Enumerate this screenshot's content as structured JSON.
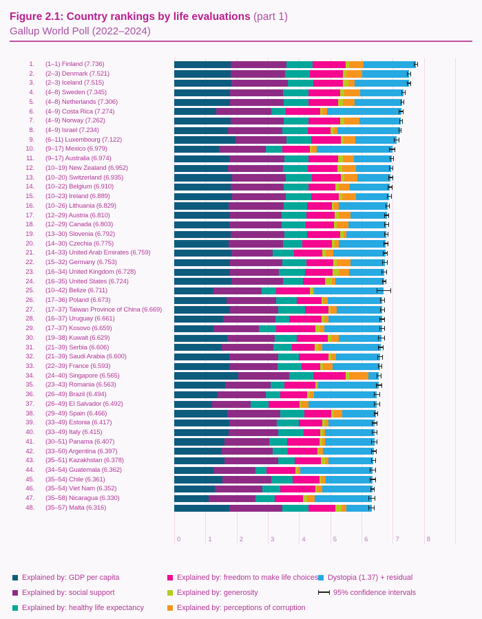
{
  "title": {
    "main": "Figure 2.1: Country rankings by life evaluations",
    "part": "(part 1)",
    "subtitle": "Gallup World Poll (2022–2024)"
  },
  "legend": {
    "items": [
      {
        "label": "Explained by: GDP per capita",
        "color": "#0d5c7e",
        "col": 1,
        "row": 1
      },
      {
        "label": "Explained by: social support",
        "color": "#8e2c85",
        "col": 1,
        "row": 2
      },
      {
        "label": "Explained by: healthy life expectancy",
        "color": "#02a79a",
        "col": 1,
        "row": 3
      },
      {
        "label": "Explained by: freedom to make life choices",
        "color": "#f50790",
        "col": 2,
        "row": 1
      },
      {
        "label": "Explained by: generosity",
        "color": "#b5cc1e",
        "col": 2,
        "row": 2
      },
      {
        "label": "Explained by: perceptions of corruption",
        "color": "#f7941e",
        "col": 2,
        "row": 3
      },
      {
        "label": "Dystopia (1.37) + residual",
        "color": "#27a9e1",
        "col": 3,
        "row": 1
      },
      {
        "label": "95% confidence intervals",
        "glyph": "errorbar",
        "col": 3,
        "row": 2
      }
    ]
  },
  "chart_data": {
    "type": "bar",
    "orientation": "horizontal-stacked",
    "xlim": [
      0,
      8
    ],
    "x_ticks": [
      0,
      1,
      2,
      3,
      4,
      5,
      6,
      7,
      8
    ],
    "grid": true,
    "legend_position": "bottom",
    "stack_order": [
      "gdp_per_capita",
      "social_support",
      "healthy_life_expectancy",
      "freedom",
      "generosity",
      "corruption",
      "dystopia_residual"
    ],
    "colors": {
      "gdp_per_capita": "#0d5c7e",
      "social_support": "#8e2c85",
      "healthy_life_expectancy": "#02a79a",
      "freedom": "#f50790",
      "generosity": "#b5cc1e",
      "corruption": "#f7941e",
      "dystopia_residual": "#27a9e1",
      "confidence_interval": "#1f1f1f"
    },
    "rows": [
      {
        "rank": 1,
        "range": "(1–1)",
        "country": "Finland",
        "score": 7.736,
        "ci": 0.06,
        "segments": [
          1.8,
          1.8,
          0.83,
          1.06,
          0.11,
          0.47,
          1.67
        ]
      },
      {
        "rank": 2,
        "range": "(2–3)",
        "country": "Denmark",
        "score": 7.521,
        "ci": 0.07,
        "segments": [
          1.8,
          1.75,
          0.8,
          1.05,
          0.12,
          0.5,
          1.5
        ]
      },
      {
        "rank": 3,
        "range": "(2–3)",
        "country": "Iceland",
        "score": 7.515,
        "ci": 0.06,
        "segments": [
          1.82,
          1.82,
          0.81,
          0.95,
          0.17,
          0.2,
          1.75
        ]
      },
      {
        "rank": 4,
        "range": "(4–8)",
        "country": "Sweden",
        "score": 7.345,
        "ci": 0.06,
        "segments": [
          1.78,
          1.7,
          0.81,
          1.02,
          0.14,
          0.51,
          1.38
        ]
      },
      {
        "rank": 5,
        "range": "(4–8)",
        "country": "Netherlands",
        "score": 7.306,
        "ci": 0.05,
        "segments": [
          1.79,
          1.71,
          0.8,
          0.95,
          0.15,
          0.38,
          1.53
        ]
      },
      {
        "rank": 6,
        "range": "(4–9)",
        "country": "Costa Rica",
        "score": 7.274,
        "ci": 0.08,
        "segments": [
          1.35,
          1.75,
          0.48,
          1.09,
          0.07,
          0.15,
          2.38
        ]
      },
      {
        "rank": 7,
        "range": "(4–9)",
        "country": "Norway",
        "score": 7.262,
        "ci": 0.06,
        "segments": [
          1.8,
          1.7,
          0.8,
          1.02,
          0.12,
          0.49,
          1.33
        ]
      },
      {
        "rank": 8,
        "range": "(4–9)",
        "country": "Israel",
        "score": 7.234,
        "ci": 0.05,
        "segments": [
          1.71,
          1.75,
          0.82,
          0.73,
          0.1,
          0.12,
          2.0
        ]
      },
      {
        "rank": 9,
        "range": "(6–11)",
        "country": "Luxembourg",
        "score": 7.122,
        "ci": 0.08,
        "segments": [
          1.97,
          1.62,
          0.79,
          0.96,
          0.09,
          0.37,
          1.32
        ]
      },
      {
        "rank": 10,
        "range": "(9–17)",
        "country": "Mexico",
        "score": 6.979,
        "ci": 0.09,
        "segments": [
          1.43,
          1.51,
          0.53,
          0.87,
          0.07,
          0.15,
          2.42
        ]
      },
      {
        "rank": 11,
        "range": "(9–17)",
        "country": "Australia",
        "score": 6.974,
        "ci": 0.07,
        "segments": [
          1.76,
          1.76,
          0.79,
          0.93,
          0.17,
          0.34,
          1.22
        ]
      },
      {
        "rank": 12,
        "range": "(10–19)",
        "country": "New Zealand",
        "score": 6.952,
        "ci": 0.07,
        "segments": [
          1.72,
          1.77,
          0.79,
          0.94,
          0.17,
          0.43,
          1.13
        ]
      },
      {
        "rank": 13,
        "range": "(10–20)",
        "country": "Switzerland",
        "score": 6.935,
        "ci": 0.07,
        "segments": [
          1.86,
          1.71,
          0.83,
          0.93,
          0.11,
          0.43,
          1.06
        ]
      },
      {
        "rank": 14,
        "range": "(10–22)",
        "country": "Belgium",
        "score": 6.91,
        "ci": 0.07,
        "segments": [
          1.81,
          1.7,
          0.8,
          0.86,
          0.09,
          0.36,
          1.29
        ]
      },
      {
        "rank": 15,
        "range": "(10–23)",
        "country": "Ireland",
        "score": 6.889,
        "ci": 0.07,
        "segments": [
          1.86,
          1.72,
          0.81,
          0.88,
          0.12,
          0.43,
          1.07
        ]
      },
      {
        "rank": 16,
        "range": "(10–26)",
        "country": "Lithuania",
        "score": 6.829,
        "ci": 0.07,
        "segments": [
          1.75,
          1.76,
          0.74,
          0.8,
          0.06,
          0.16,
          1.56
        ]
      },
      {
        "rank": 17,
        "range": "(12–29)",
        "country": "Austria",
        "score": 6.81,
        "ci": 0.08,
        "segments": [
          1.79,
          1.65,
          0.8,
          0.89,
          0.13,
          0.39,
          1.16
        ]
      },
      {
        "rank": 18,
        "range": "(12–29)",
        "country": "Canada",
        "score": 6.803,
        "ci": 0.08,
        "segments": [
          1.77,
          1.67,
          0.78,
          0.9,
          0.09,
          0.37,
          1.22
        ]
      },
      {
        "rank": 19,
        "range": "(13–30)",
        "country": "Slovenia",
        "score": 6.792,
        "ci": 0.07,
        "segments": [
          1.8,
          1.73,
          0.72,
          1.06,
          0.12,
          0.09,
          1.27
        ]
      },
      {
        "rank": 20,
        "range": "(14–30)",
        "country": "Czechia",
        "score": 6.775,
        "ci": 0.08,
        "segments": [
          1.74,
          1.74,
          0.63,
          0.94,
          0.08,
          0.14,
          1.5
        ]
      },
      {
        "rank": 21,
        "range": "(14–33)",
        "country": "United Arab Emirates",
        "score": 6.759,
        "ci": 0.08,
        "segments": [
          1.82,
          1.34,
          0.67,
          0.91,
          0.11,
          0.25,
          1.66
        ]
      },
      {
        "rank": 22,
        "range": "(15–32)",
        "country": "Germany",
        "score": 6.753,
        "ci": 0.09,
        "segments": [
          1.79,
          1.68,
          0.76,
          0.86,
          0.11,
          0.45,
          1.1
        ]
      },
      {
        "rank": 23,
        "range": "(16–34)",
        "country": "United Kingdom",
        "score": 6.728,
        "ci": 0.08,
        "segments": [
          1.79,
          1.57,
          0.84,
          0.87,
          0.19,
          0.34,
          1.13
        ]
      },
      {
        "rank": 24,
        "range": "(16–35)",
        "country": "United States",
        "score": 6.724,
        "ci": 0.07,
        "segments": [
          1.84,
          1.64,
          0.64,
          0.7,
          0.24,
          0.1,
          1.56
        ]
      },
      {
        "rank": 25,
        "range": "(10–42)",
        "country": "Belize",
        "score": 6.711,
        "ci": 0.23,
        "segments": [
          1.25,
          1.54,
          0.48,
          1.07,
          0.09,
          0.05,
          2.23
        ]
      },
      {
        "rank": 26,
        "range": "(17–36)",
        "country": "Poland",
        "score": 6.673,
        "ci": 0.08,
        "segments": [
          1.67,
          1.59,
          0.66,
          0.79,
          0.05,
          0.15,
          1.76
        ]
      },
      {
        "rank": 27,
        "range": "(17–37)",
        "country": "Taiwan Province of China",
        "score": 6.669,
        "ci": 0.07,
        "segments": [
          1.78,
          1.56,
          0.85,
          0.76,
          0.05,
          0.21,
          1.46
        ]
      },
      {
        "rank": 28,
        "range": "(16–37)",
        "country": "Uruguay",
        "score": 6.661,
        "ci": 0.09,
        "segments": [
          1.56,
          1.68,
          0.45,
          1.02,
          0.09,
          0.13,
          1.73
        ]
      },
      {
        "rank": 29,
        "range": "(17–37)",
        "country": "Kosovo",
        "score": 6.659,
        "ci": 0.09,
        "segments": [
          1.25,
          1.47,
          0.55,
          1.25,
          0.15,
          0.13,
          1.86
        ]
      },
      {
        "rank": 30,
        "range": "(19–38)",
        "country": "Kuwait",
        "score": 6.629,
        "ci": 0.11,
        "segments": [
          1.7,
          1.52,
          0.7,
          0.99,
          0.11,
          0.26,
          1.35
        ]
      },
      {
        "rank": 31,
        "range": "(21–39)",
        "country": "Serbia",
        "score": 6.606,
        "ci": 0.09,
        "segments": [
          1.52,
          1.65,
          0.61,
          0.71,
          0.11,
          0.14,
          1.87
        ]
      },
      {
        "rank": 32,
        "range": "(21–39)",
        "country": "Saudi Arabia",
        "score": 6.6,
        "ci": 0.09,
        "segments": [
          1.76,
          1.57,
          0.66,
          0.95,
          0.08,
          0.16,
          1.42
        ]
      },
      {
        "rank": 33,
        "range": "(22–39)",
        "country": "France",
        "score": 6.593,
        "ci": 0.07,
        "segments": [
          1.76,
          1.54,
          0.77,
          0.6,
          0.1,
          0.3,
          1.52
        ]
      },
      {
        "rank": 34,
        "range": "(24–40)",
        "country": "Singapore",
        "score": 6.565,
        "ci": 0.08,
        "segments": [
          2.05,
          1.63,
          0.78,
          1.04,
          0.11,
          0.61,
          0.34
        ]
      },
      {
        "rank": 35,
        "range": "(23–43)",
        "country": "Romania",
        "score": 6.563,
        "ci": 0.1,
        "segments": [
          1.64,
          1.44,
          0.44,
          0.99,
          0.05,
          0.06,
          1.94
        ]
      },
      {
        "rank": 36,
        "range": "(26–49)",
        "country": "Brazil",
        "score": 6.494,
        "ci": 0.1,
        "segments": [
          1.38,
          1.56,
          0.45,
          0.87,
          0.08,
          0.14,
          2.01
        ]
      },
      {
        "rank": 37,
        "range": "(26–49)",
        "country": "El Salvador",
        "score": 6.492,
        "ci": 0.1,
        "segments": [
          1.21,
          1.24,
          0.58,
          0.98,
          0.05,
          0.25,
          2.18
        ]
      },
      {
        "rank": 38,
        "range": "(29–49)",
        "country": "Spain",
        "score": 6.466,
        "ci": 0.07,
        "segments": [
          1.7,
          1.69,
          0.78,
          0.86,
          0.08,
          0.27,
          1.08
        ]
      },
      {
        "rank": 39,
        "range": "(33–49)",
        "country": "Estonia",
        "score": 6.417,
        "ci": 0.08,
        "segments": [
          1.77,
          1.52,
          0.7,
          0.76,
          0.07,
          0.12,
          1.48
        ]
      },
      {
        "rank": 40,
        "range": "(33–49)",
        "country": "Italy",
        "score": 6.415,
        "ci": 0.08,
        "segments": [
          1.74,
          1.59,
          0.81,
          0.54,
          0.09,
          0.07,
          1.58
        ]
      },
      {
        "rank": 41,
        "range": "(30–51)",
        "country": "Panama",
        "score": 6.407,
        "ci": 0.1,
        "segments": [
          1.6,
          1.45,
          0.57,
          1.03,
          0.1,
          0.08,
          1.58
        ]
      },
      {
        "rank": 42,
        "range": "(33–50)",
        "country": "Argentina",
        "score": 6.397,
        "ci": 0.09,
        "segments": [
          1.52,
          1.64,
          0.48,
          0.95,
          0.05,
          0.12,
          1.64
        ]
      },
      {
        "rank": 43,
        "range": "(35–51)",
        "country": "Kazakhstan",
        "score": 6.378,
        "ci": 0.08,
        "segments": [
          1.6,
          1.72,
          0.54,
          0.84,
          0.12,
          0.12,
          1.44
        ]
      },
      {
        "rank": 44,
        "range": "(34–54)",
        "country": "Guatemala",
        "score": 6.362,
        "ci": 0.11,
        "segments": [
          1.25,
          1.36,
          0.34,
          0.93,
          0.06,
          0.09,
          2.33
        ]
      },
      {
        "rank": 45,
        "range": "(35–54)",
        "country": "Chile",
        "score": 6.361,
        "ci": 0.1,
        "segments": [
          1.55,
          1.56,
          0.69,
          0.85,
          0.05,
          0.15,
          1.51
        ]
      },
      {
        "rank": 46,
        "range": "(35–54)",
        "country": "Viet Nam",
        "score": 6.352,
        "ci": 0.07,
        "segments": [
          1.29,
          1.54,
          0.57,
          1.12,
          0.04,
          0.18,
          1.61
        ]
      },
      {
        "rank": 47,
        "range": "(35–58)",
        "country": "Nicaragua",
        "score": 6.33,
        "ci": 0.12,
        "segments": [
          1.1,
          1.51,
          0.6,
          0.92,
          0.12,
          0.25,
          1.83
        ]
      },
      {
        "rank": 48,
        "range": "(35–57)",
        "country": "Malta",
        "score": 6.316,
        "ci": 0.09,
        "segments": [
          1.77,
          1.7,
          0.82,
          0.86,
          0.21,
          0.16,
          0.8
        ]
      }
    ]
  }
}
